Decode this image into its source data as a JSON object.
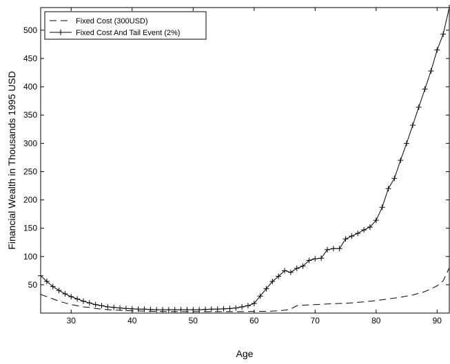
{
  "chart_data": {
    "type": "line",
    "title": "",
    "xlabel": "Age",
    "ylabel": "Financial Wealth in Thousands 1995 USD",
    "xlim": [
      25,
      92
    ],
    "ylim": [
      0,
      540
    ],
    "x_ticks": [
      30,
      40,
      50,
      60,
      70,
      80,
      90
    ],
    "y_ticks": [
      50,
      100,
      150,
      200,
      250,
      300,
      350,
      400,
      450,
      500
    ],
    "grid": false,
    "legend_position": "top-left",
    "series": [
      {
        "name": "Fixed Cost (300USD)",
        "style": "dashed",
        "color": "#000000",
        "x": [
          25,
          26,
          27,
          28,
          29,
          30,
          31,
          32,
          33,
          34,
          35,
          36,
          37,
          38,
          39,
          40,
          42,
          44,
          46,
          48,
          50,
          52,
          54,
          56,
          58,
          60,
          61,
          62,
          63,
          64,
          65,
          66,
          67,
          68,
          70,
          72,
          74,
          76,
          78,
          80,
          82,
          84,
          86,
          88,
          90,
          91,
          92
        ],
        "y": [
          33,
          29,
          25,
          21,
          18,
          15,
          13,
          11,
          10,
          8,
          7,
          6,
          5.5,
          5,
          4.5,
          4,
          3.5,
          3,
          2.5,
          2.5,
          2.5,
          2.5,
          2.5,
          2.5,
          2.5,
          3,
          3,
          3,
          3.5,
          4,
          5,
          7,
          13,
          14,
          15,
          16,
          17,
          18,
          20,
          22,
          25,
          28,
          32,
          38,
          48,
          57,
          80
        ]
      },
      {
        "name": "Fixed Cost And Tail Event (2%)",
        "style": "solid-plus",
        "color": "#000000",
        "x": [
          25,
          26,
          27,
          28,
          29,
          30,
          31,
          32,
          33,
          34,
          35,
          36,
          37,
          38,
          39,
          40,
          41,
          42,
          43,
          44,
          45,
          46,
          47,
          48,
          49,
          50,
          51,
          52,
          53,
          54,
          55,
          56,
          57,
          58,
          59,
          60,
          61,
          62,
          63,
          64,
          65,
          66,
          67,
          68,
          69,
          70,
          71,
          72,
          73,
          74,
          75,
          76,
          77,
          78,
          79,
          80,
          81,
          82,
          83,
          84,
          85,
          86,
          87,
          88,
          89,
          90,
          91,
          92
        ],
        "y": [
          66,
          56,
          47,
          40,
          34,
          29,
          25,
          21,
          18,
          15,
          13,
          11,
          10,
          9,
          8,
          7.5,
          7,
          7,
          6.5,
          6,
          6,
          6,
          6,
          6,
          6,
          6,
          6,
          6.5,
          7,
          7,
          7.5,
          8,
          9,
          11,
          13,
          17,
          30,
          43,
          56,
          65,
          75,
          72,
          79,
          83,
          93,
          96,
          97,
          112,
          114,
          114,
          131,
          136,
          141,
          147,
          152,
          164,
          187,
          220,
          238,
          270,
          300,
          332,
          364,
          396,
          428,
          465,
          493,
          540
        ]
      }
    ]
  }
}
